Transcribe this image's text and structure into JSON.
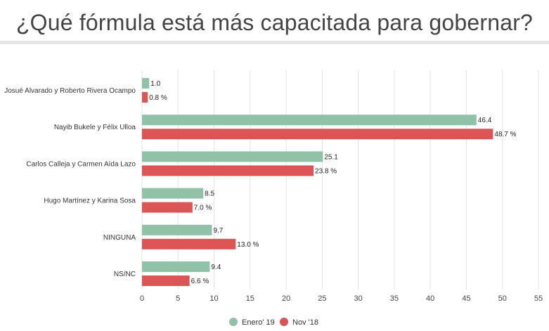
{
  "title": "¿Qué fórmula está más capacitada para gobernar?",
  "colors": {
    "enero19": "#8fc2a7",
    "nov18": "#dc5555"
  },
  "chart_data": {
    "type": "bar",
    "orientation": "horizontal",
    "categories": [
      "Josué Alvarado y Roberto Rivera Ocampo",
      "Nayib Bukele y Félix Ulloa",
      "Carlos Calleja y Carmen Aída Lazo",
      "Hugo Martínez y Karina Sosa",
      "NINGUNA",
      "NS/NC"
    ],
    "series": [
      {
        "name": "Enero' 19",
        "values": [
          1.0,
          46.4,
          25.1,
          8.5,
          9.7,
          9.4
        ],
        "labels": [
          "1.0",
          "46.4",
          "25.1",
          "8.5",
          "9.7",
          "9.4"
        ]
      },
      {
        "name": "Nov '18",
        "values": [
          0.8,
          48.7,
          23.8,
          7.0,
          13.0,
          6.6
        ],
        "labels": [
          "0.8 %",
          "48.7 %",
          "23.8 %",
          "7.0 %",
          "13.0 %",
          "6.6 %"
        ]
      }
    ],
    "xlim": [
      0,
      55
    ],
    "xticks": [
      "0",
      "5",
      "10",
      "15",
      "20",
      "25",
      "30",
      "35",
      "40",
      "45",
      "50",
      "55"
    ],
    "grid": true,
    "legend_position": "bottom"
  }
}
